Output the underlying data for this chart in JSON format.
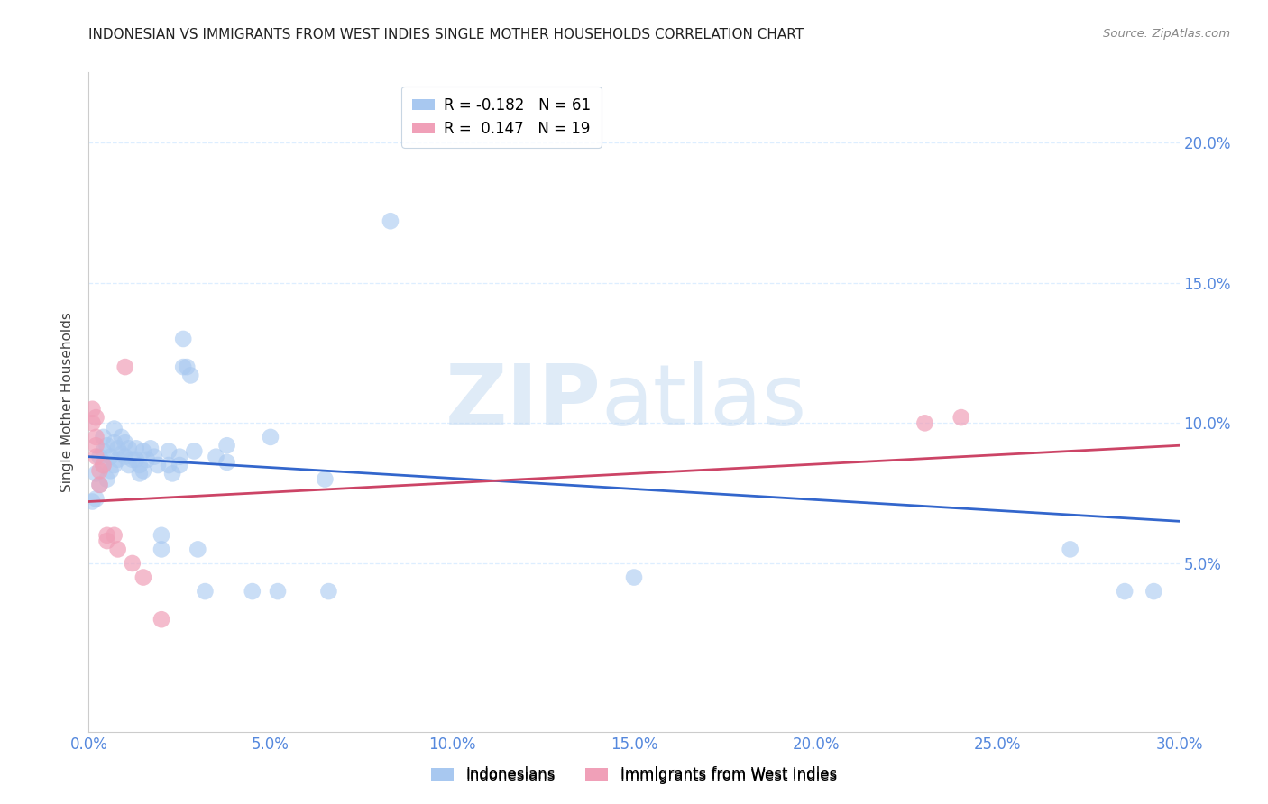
{
  "title": "INDONESIAN VS IMMIGRANTS FROM WEST INDIES SINGLE MOTHER HOUSEHOLDS CORRELATION CHART",
  "source": "Source: ZipAtlas.com",
  "ylabel": "Single Mother Households",
  "xlim": [
    0.0,
    0.3
  ],
  "ylim": [
    -0.01,
    0.225
  ],
  "yticks_right": [
    0.05,
    0.1,
    0.15,
    0.2
  ],
  "xticks": [
    0.0,
    0.05,
    0.1,
    0.15,
    0.2,
    0.25,
    0.3
  ],
  "watermark_line1": "ZIP",
  "watermark_line2": "atlas",
  "indonesian_scatter": [
    [
      0.001,
      0.072
    ],
    [
      0.002,
      0.073
    ],
    [
      0.002,
      0.082
    ],
    [
      0.003,
      0.078
    ],
    [
      0.003,
      0.088
    ],
    [
      0.004,
      0.085
    ],
    [
      0.004,
      0.09
    ],
    [
      0.004,
      0.095
    ],
    [
      0.005,
      0.08
    ],
    [
      0.005,
      0.092
    ],
    [
      0.006,
      0.088
    ],
    [
      0.006,
      0.083
    ],
    [
      0.007,
      0.098
    ],
    [
      0.007,
      0.093
    ],
    [
      0.007,
      0.085
    ],
    [
      0.008,
      0.091
    ],
    [
      0.008,
      0.087
    ],
    [
      0.009,
      0.095
    ],
    [
      0.009,
      0.089
    ],
    [
      0.01,
      0.088
    ],
    [
      0.01,
      0.093
    ],
    [
      0.011,
      0.085
    ],
    [
      0.011,
      0.091
    ],
    [
      0.012,
      0.087
    ],
    [
      0.013,
      0.091
    ],
    [
      0.013,
      0.087
    ],
    [
      0.014,
      0.085
    ],
    [
      0.014,
      0.082
    ],
    [
      0.015,
      0.09
    ],
    [
      0.015,
      0.083
    ],
    [
      0.016,
      0.087
    ],
    [
      0.017,
      0.091
    ],
    [
      0.018,
      0.088
    ],
    [
      0.019,
      0.085
    ],
    [
      0.02,
      0.06
    ],
    [
      0.02,
      0.055
    ],
    [
      0.022,
      0.09
    ],
    [
      0.022,
      0.085
    ],
    [
      0.023,
      0.082
    ],
    [
      0.025,
      0.088
    ],
    [
      0.025,
      0.085
    ],
    [
      0.026,
      0.12
    ],
    [
      0.026,
      0.13
    ],
    [
      0.027,
      0.12
    ],
    [
      0.028,
      0.117
    ],
    [
      0.029,
      0.09
    ],
    [
      0.03,
      0.055
    ],
    [
      0.032,
      0.04
    ],
    [
      0.035,
      0.088
    ],
    [
      0.038,
      0.092
    ],
    [
      0.038,
      0.086
    ],
    [
      0.045,
      0.04
    ],
    [
      0.05,
      0.095
    ],
    [
      0.052,
      0.04
    ],
    [
      0.065,
      0.08
    ],
    [
      0.066,
      0.04
    ],
    [
      0.083,
      0.172
    ],
    [
      0.15,
      0.045
    ],
    [
      0.27,
      0.055
    ],
    [
      0.285,
      0.04
    ],
    [
      0.293,
      0.04
    ]
  ],
  "westindies_scatter": [
    [
      0.001,
      0.105
    ],
    [
      0.001,
      0.1
    ],
    [
      0.002,
      0.102
    ],
    [
      0.002,
      0.095
    ],
    [
      0.002,
      0.092
    ],
    [
      0.002,
      0.088
    ],
    [
      0.003,
      0.083
    ],
    [
      0.003,
      0.078
    ],
    [
      0.004,
      0.085
    ],
    [
      0.005,
      0.06
    ],
    [
      0.005,
      0.058
    ],
    [
      0.007,
      0.06
    ],
    [
      0.008,
      0.055
    ],
    [
      0.01,
      0.12
    ],
    [
      0.012,
      0.05
    ],
    [
      0.015,
      0.045
    ],
    [
      0.02,
      0.03
    ],
    [
      0.23,
      0.1
    ],
    [
      0.24,
      0.102
    ]
  ],
  "blue_line_x": [
    0.0,
    0.3
  ],
  "blue_line_y": [
    0.088,
    0.065
  ],
  "pink_line_x": [
    0.0,
    0.3
  ],
  "pink_line_y": [
    0.072,
    0.092
  ],
  "dot_size": 180,
  "blue_scatter_color": "#A8C8F0",
  "pink_scatter_color": "#F0A0B8",
  "blue_line_color": "#3366CC",
  "pink_line_color": "#CC4466",
  "axis_tick_color": "#5588DD",
  "grid_color": "#DDEEFF",
  "title_color": "#222222",
  "source_color": "#888888",
  "watermark_color": "#C0D8F0",
  "legend_blue_label_r": "R = -0.182",
  "legend_blue_label_n": "N = 61",
  "legend_pink_label_r": "R =  0.147",
  "legend_pink_label_n": "N = 19",
  "bottom_legend_blue": "Indonesians",
  "bottom_legend_pink": "Immigrants from West Indies"
}
